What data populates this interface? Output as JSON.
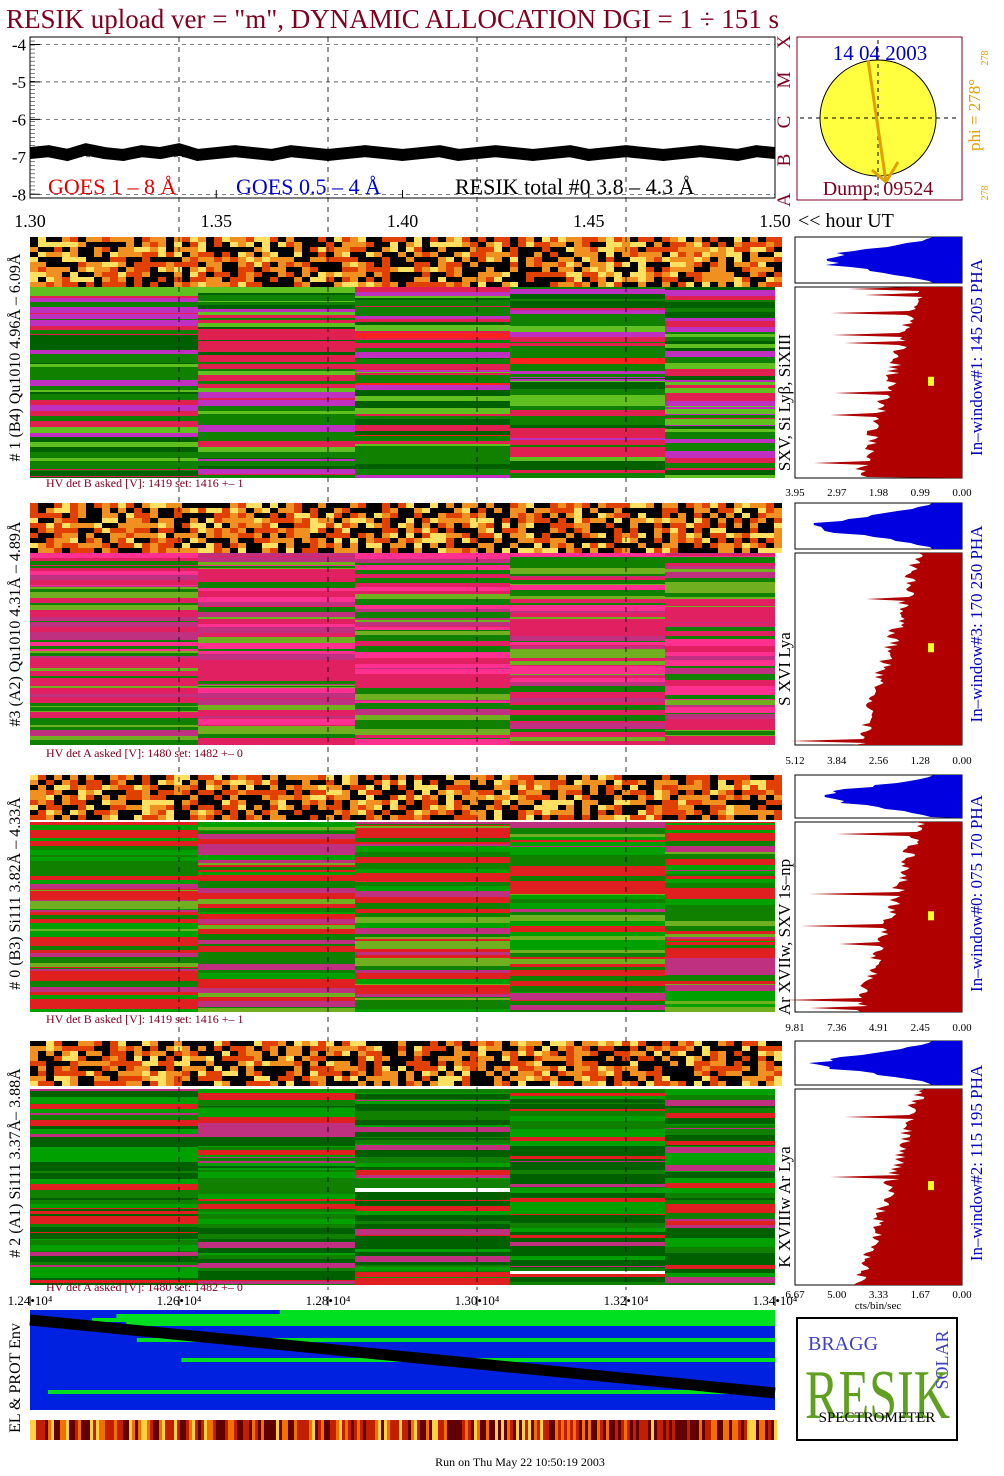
{
  "chart_data": [
    {
      "type": "line",
      "title": "RESIK upload ver = \"m\", DYNAMIC ALLOCATION  DGI =   1 ÷ 151 s",
      "xlabel": "<< hour UT",
      "xlim": [
        1.3,
        1.5
      ],
      "xticks": [
        {
          "value": 1.3,
          "label": "1.30"
        },
        {
          "value": 1.35,
          "label": "1.35"
        },
        {
          "value": 1.4,
          "label": "1.40"
        },
        {
          "value": 1.45,
          "label": "1.45"
        },
        {
          "value": 1.5,
          "label": "1.50"
        }
      ],
      "ylim": [
        -8.1,
        -3.8
      ],
      "yticks": [
        -4,
        -5,
        -6,
        -7,
        -8
      ],
      "x": [
        1.3,
        1.305,
        1.31,
        1.315,
        1.32,
        1.325,
        1.33,
        1.335,
        1.34,
        1.345,
        1.35,
        1.355,
        1.36,
        1.365,
        1.37,
        1.375,
        1.38,
        1.385,
        1.39,
        1.395,
        1.4,
        1.405,
        1.41,
        1.415,
        1.42,
        1.425,
        1.43,
        1.435,
        1.44,
        1.445,
        1.45,
        1.455,
        1.46,
        1.465,
        1.47,
        1.475,
        1.48,
        1.485,
        1.49,
        1.495,
        1.5
      ],
      "series": [
        {
          "name": "RESIK total #0  3.8 – 4.3 Å",
          "color": "#000000",
          "values": [
            -6.9,
            -6.85,
            -6.95,
            -6.8,
            -6.9,
            -6.95,
            -6.85,
            -6.9,
            -6.8,
            -6.95,
            -6.9,
            -6.85,
            -6.9,
            -6.95,
            -6.85,
            -6.9,
            -6.95,
            -6.9,
            -6.85,
            -6.9,
            -6.95,
            -6.9,
            -6.85,
            -6.95,
            -6.9,
            -6.85,
            -6.9,
            -6.95,
            -6.9,
            -6.85,
            -6.95,
            -6.9,
            -6.85,
            -6.9,
            -6.95,
            -6.9,
            -6.85,
            -6.9,
            -6.95,
            -6.85,
            -6.9
          ]
        }
      ],
      "legend_labels": [
        {
          "text": "GOES 1 – 8 Å",
          "color": "#e00000"
        },
        {
          "text": "GOES 0.5 – 4 Å",
          "color": "#0000d0"
        }
      ],
      "class_letters": [
        "X",
        "M",
        "C",
        "B",
        "A"
      ]
    },
    {
      "type": "env",
      "ylabel": "EL & PROT Env",
      "xlim": [
        12400,
        13400
      ],
      "xticks": [
        {
          "value": 12400,
          "label": "1.24•10⁴"
        },
        {
          "value": 12600,
          "label": "1.26•10⁴"
        },
        {
          "value": 12800,
          "label": "1.28•10⁴"
        },
        {
          "value": 13000,
          "label": "1.30•10⁴"
        },
        {
          "value": 13200,
          "label": "1.32•10⁴"
        },
        {
          "value": 13400,
          "label": "1.34•10⁴"
        }
      ]
    }
  ],
  "sun": {
    "date": "14 04 2003",
    "phi": "phi = 278°",
    "phi_sup": "278",
    "phi_small": "278",
    "dump": "Dump: 09524"
  },
  "panels": [
    {
      "ylabel": "# 1 (B4) Qu1010 4.96Å – 6.09Å",
      "hv": "HV det B asked [V]:  1419 set:  1416 +–    1",
      "lines": "SXV, Si Lyβ, SiXIII",
      "window": "In–window#1:  145 205 PHA",
      "ticks": [
        "3.95",
        "2.97",
        "1.98",
        "0.99",
        "0.00"
      ]
    },
    {
      "ylabel": "#3 (A2) Qu1010  4.31Å – 4.89Å",
      "hv": "HV det A asked [V]:  1480 set:  1482 +–    0",
      "lines": "S XVI Lya",
      "window": "In–window#3:  170 250 PHA",
      "ticks": [
        "5.12",
        "3.84",
        "2.56",
        "1.28",
        "0.00"
      ]
    },
    {
      "ylabel": "# 0 (B3) Si111  3.82Å – 4.33Å",
      "hv": "HV det B asked [V]:  1419 set:  1416 +–    1",
      "lines": "Ar XVIIw, SXV 1s–np",
      "window": "In–window#0:  075 170 PHA",
      "ticks": [
        "9.81",
        "7.36",
        "4.91",
        "2.45",
        "0.00"
      ]
    },
    {
      "ylabel": "# 2 (A1) Si111  3.37Å– 3.88Å",
      "hv": "HV det A asked [V]:  1480 set:  1482 +–    0",
      "lines": "K XVIIIw  Ar Lya",
      "window": "In–window#2:  115 195 PHA",
      "ticks": [
        "6.67",
        "5.00",
        "3.33",
        "1.67",
        "0.00"
      ]
    }
  ],
  "hist_unit": "cts/bin/sec",
  "logo": {
    "top": "BRAGG",
    "main": "RESIK",
    "side": "SOLAR",
    "bottom": "SPECTROMETER"
  },
  "footer": "Run on Thu May 22 10:50:19 2003"
}
